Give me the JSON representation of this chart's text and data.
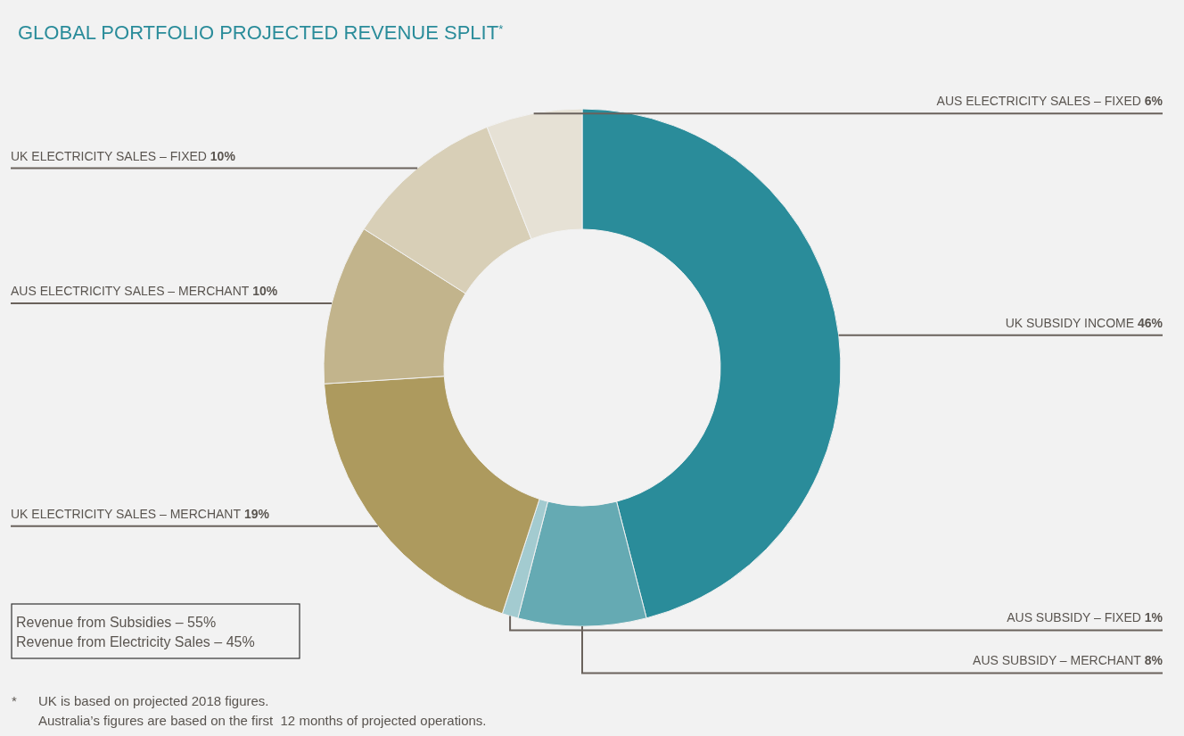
{
  "chart_data": {
    "type": "donut",
    "title": "GLOBAL PORTFOLIO PROJECTED REVENUE SPLIT$^{*}$",
    "categories": [
      "UK SUBSIDY INCOME",
      "AUS SUBSIDY – MERCHANT",
      "AUS SUBSIDY – FIXED",
      "UK ELECTRICITY SALES – MERCHANT",
      "AUS ELECTRICITY SALES – MERCHANT",
      "UK ELECTRICITY SALES – FIXED",
      "AUS ELECTRICITY SALES – FIXED"
    ],
    "values": [
      46,
      8,
      1,
      19,
      10,
      10,
      6
    ],
    "value_labels": [
      "46%",
      "8%",
      "1%",
      "19%",
      "10%",
      "10%",
      "6%"
    ],
    "colors": [
      "#2a8c9a",
      "#65aab3",
      "#a3cbd0",
      "#ad9a5e",
      "#c2b48c",
      "#d8cfb7",
      "#e6e1d5"
    ],
    "annotations": [
      "Revenue from Subsidies – 55%",
      "Revenue from Electricity Sales – 45%",
      "*",
      "UK is based on projected 2018 figures.",
      "Australia’s figures are based on the first  12 months of projected operations."
    ]
  }
}
